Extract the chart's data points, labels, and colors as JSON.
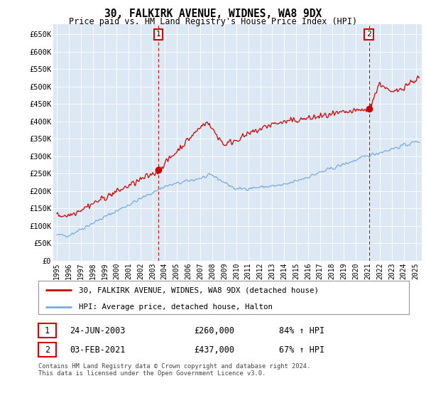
{
  "title": "30, FALKIRK AVENUE, WIDNES, WA8 9DX",
  "subtitle": "Price paid vs. HM Land Registry's House Price Index (HPI)",
  "ylim": [
    0,
    680000
  ],
  "yticks": [
    0,
    50000,
    100000,
    150000,
    200000,
    250000,
    300000,
    350000,
    400000,
    450000,
    500000,
    550000,
    600000,
    650000
  ],
  "ytick_labels": [
    "£0",
    "£50K",
    "£100K",
    "£150K",
    "£200K",
    "£250K",
    "£300K",
    "£350K",
    "£400K",
    "£450K",
    "£500K",
    "£550K",
    "£600K",
    "£650K"
  ],
  "line_color_property": "#cc0000",
  "line_color_hpi": "#7aabdc",
  "bg_color": "#ffffff",
  "chart_bg_color": "#dce9f5",
  "grid_color": "#ffffff",
  "sale1_x": 2003.48,
  "sale1_y": 260000,
  "sale1_label": "1",
  "sale2_x": 2021.09,
  "sale2_y": 437000,
  "sale2_label": "2",
  "legend_line1": "30, FALKIRK AVENUE, WIDNES, WA8 9DX (detached house)",
  "legend_line2": "HPI: Average price, detached house, Halton",
  "table_row1": [
    "1",
    "24-JUN-2003",
    "£260,000",
    "84% ↑ HPI"
  ],
  "table_row2": [
    "2",
    "03-FEB-2021",
    "£437,000",
    "67% ↑ HPI"
  ],
  "footnote": "Contains HM Land Registry data © Crown copyright and database right 2024.\nThis data is licensed under the Open Government Licence v3.0.",
  "vline1_x": 2003.48,
  "vline2_x": 2021.09,
  "xmin": 1994.7,
  "xmax": 2025.5
}
